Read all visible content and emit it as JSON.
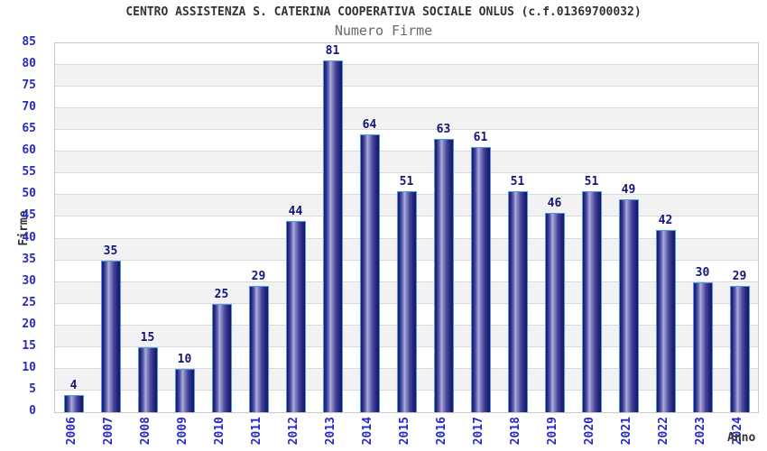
{
  "chart_data": {
    "type": "bar",
    "title": "CENTRO ASSISTENZA S. CATERINA COOPERATIVA SOCIALE ONLUS (c.f.01369700032)",
    "subtitle": "Numero Firme",
    "xlabel": "Anno",
    "ylabel": "Firme",
    "categories": [
      "2006",
      "2007",
      "2008",
      "2009",
      "2010",
      "2011",
      "2012",
      "2013",
      "2014",
      "2015",
      "2016",
      "2017",
      "2018",
      "2019",
      "2020",
      "2021",
      "2022",
      "2023",
      "2024"
    ],
    "values": [
      4,
      35,
      15,
      10,
      25,
      29,
      44,
      81,
      64,
      51,
      63,
      61,
      51,
      46,
      51,
      49,
      42,
      30,
      29
    ],
    "ylim": [
      0,
      85
    ],
    "ytick_step": 5,
    "grid": true,
    "legend": "none",
    "band_fill": "alternating"
  },
  "colors": {
    "background": "#ffffff",
    "title": "#333333",
    "subtitle": "#686868",
    "axis_title": "#333333",
    "tick_label": "#2828cc",
    "value_label": "#15157b",
    "bar_dark": "#16165e",
    "bar_mid": "#2b2b85",
    "bar_highlight": "#aeaede",
    "bar_border": "#4b9ae8",
    "band_gray": "#f2f2f2",
    "gridline": "#dadada",
    "plot_border": "#c8c8c8"
  }
}
